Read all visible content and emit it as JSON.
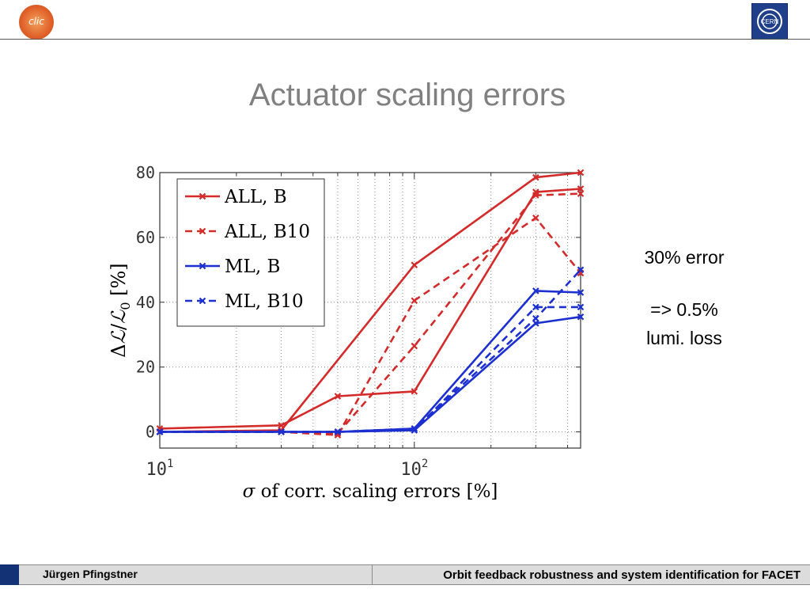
{
  "header": {
    "logo_left_text": "clic",
    "logo_right_text": "CERN"
  },
  "slide": {
    "title": "Actuator scaling errors",
    "annotation_lines": [
      "30% error",
      "=> 0.5%",
      "lumi. loss"
    ]
  },
  "footer": {
    "author": "Jürgen Pfingstner",
    "talk_title": "Orbit feedback robustness and system identification for FACET"
  },
  "colors": {
    "red": "#d42a2a",
    "blue": "#1c2fd0",
    "footer_accent": "#133275",
    "title_gray": "#808080"
  },
  "chart_data": {
    "type": "line",
    "xscale": "log",
    "xlim": [
      10,
      450
    ],
    "ylim": [
      -5,
      80
    ],
    "grid": true,
    "legend_position": "top-left",
    "x_ticks": [
      {
        "value": 10,
        "base": "10",
        "exp": "1"
      },
      {
        "value": 100,
        "base": "10",
        "exp": "2"
      }
    ],
    "y_ticks": [
      0,
      20,
      40,
      60,
      80
    ],
    "xlabel": {
      "sigma": "σ",
      "text": " of corr.  scaling errors [%]"
    },
    "ylabel": {
      "delta": "Δ",
      "l": "ℒ",
      "slash": "/",
      "l0": "ℒ",
      "sub": "0",
      "unit": " [%]"
    },
    "series": [
      {
        "name": "ALL, B",
        "color": "#d42a2a",
        "dash": false,
        "points": [
          [
            10,
            1
          ],
          [
            30,
            2
          ],
          [
            50,
            11
          ],
          [
            100,
            12.5
          ],
          [
            300,
            74
          ],
          [
            450,
            75
          ]
        ]
      },
      {
        "name": "ALL, B",
        "color": "#d42a2a",
        "dash": false,
        "points": [
          [
            10,
            0
          ],
          [
            30,
            0.5
          ],
          [
            100,
            51.5
          ],
          [
            300,
            78.5
          ],
          [
            450,
            80
          ]
        ]
      },
      {
        "name": "ALL, B10",
        "color": "#d42a2a",
        "dash": true,
        "points": [
          [
            10,
            0
          ],
          [
            30,
            0
          ],
          [
            50,
            -1
          ],
          [
            100,
            40.5
          ],
          [
            300,
            66
          ],
          [
            450,
            49
          ]
        ]
      },
      {
        "name": "ALL, B10",
        "color": "#d42a2a",
        "dash": true,
        "points": [
          [
            10,
            0
          ],
          [
            30,
            0
          ],
          [
            50,
            -0.5
          ],
          [
            100,
            26.5
          ],
          [
            300,
            73
          ],
          [
            450,
            73.5
          ]
        ]
      },
      {
        "name": "ML, B",
        "color": "#1c2fd0",
        "dash": false,
        "points": [
          [
            10,
            0
          ],
          [
            30,
            0
          ],
          [
            50,
            0
          ],
          [
            100,
            1
          ],
          [
            300,
            43.5
          ],
          [
            450,
            43
          ]
        ]
      },
      {
        "name": "ML, B",
        "color": "#1c2fd0",
        "dash": false,
        "points": [
          [
            10,
            0
          ],
          [
            30,
            0
          ],
          [
            50,
            0
          ],
          [
            100,
            0.5
          ],
          [
            300,
            33.5
          ],
          [
            450,
            35.5
          ]
        ]
      },
      {
        "name": "ML, B10",
        "color": "#1c2fd0",
        "dash": true,
        "points": [
          [
            10,
            0
          ],
          [
            30,
            0
          ],
          [
            50,
            0
          ],
          [
            100,
            0.5
          ],
          [
            300,
            38.5
          ],
          [
            450,
            38.5
          ]
        ]
      },
      {
        "name": "ML, B10",
        "color": "#1c2fd0",
        "dash": true,
        "points": [
          [
            10,
            0
          ],
          [
            30,
            0
          ],
          [
            50,
            0
          ],
          [
            100,
            1
          ],
          [
            300,
            35
          ],
          [
            450,
            50
          ]
        ]
      }
    ],
    "legend": [
      {
        "label": "ALL, B",
        "color": "#d42a2a",
        "dash": false
      },
      {
        "label": "ALL, B10",
        "color": "#d42a2a",
        "dash": true
      },
      {
        "label": "ML, B",
        "color": "#1c2fd0",
        "dash": false
      },
      {
        "label": "ML, B10",
        "color": "#1c2fd0",
        "dash": true
      }
    ]
  }
}
